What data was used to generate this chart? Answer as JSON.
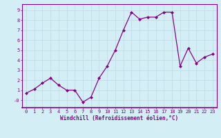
{
  "x": [
    0,
    1,
    2,
    3,
    4,
    5,
    6,
    7,
    8,
    9,
    10,
    11,
    12,
    13,
    14,
    15,
    16,
    17,
    18,
    19,
    20,
    21,
    22,
    23
  ],
  "y": [
    0.7,
    1.1,
    1.7,
    2.2,
    1.5,
    1.0,
    1.0,
    -0.2,
    0.3,
    2.2,
    3.4,
    5.0,
    7.0,
    8.8,
    8.1,
    8.3,
    8.3,
    8.8,
    8.8,
    3.4,
    5.2,
    3.7,
    4.3,
    4.6
  ],
  "line_color": "#880088",
  "marker": "D",
  "markersize": 2.0,
  "linewidth": 0.9,
  "xlabel": "Windchill (Refroidissement éolien,°C)",
  "xlabel_fontsize": 5.5,
  "xlim": [
    -0.5,
    23.5
  ],
  "ylim": [
    -0.75,
    9.6
  ],
  "yticks": [
    0,
    1,
    2,
    3,
    4,
    5,
    6,
    7,
    8,
    9
  ],
  "ytick_labels": [
    "-0",
    "1",
    "2",
    "3",
    "4",
    "5",
    "6",
    "7",
    "8",
    "9"
  ],
  "xticks": [
    0,
    1,
    2,
    3,
    4,
    5,
    6,
    7,
    8,
    9,
    10,
    11,
    12,
    13,
    14,
    15,
    16,
    17,
    18,
    19,
    20,
    21,
    22,
    23
  ],
  "bg_color": "#d4eef5",
  "grid_color": "#c0dde8",
  "tick_label_fontsize": 5.0,
  "spine_color": "#880088",
  "tick_color": "#880088"
}
